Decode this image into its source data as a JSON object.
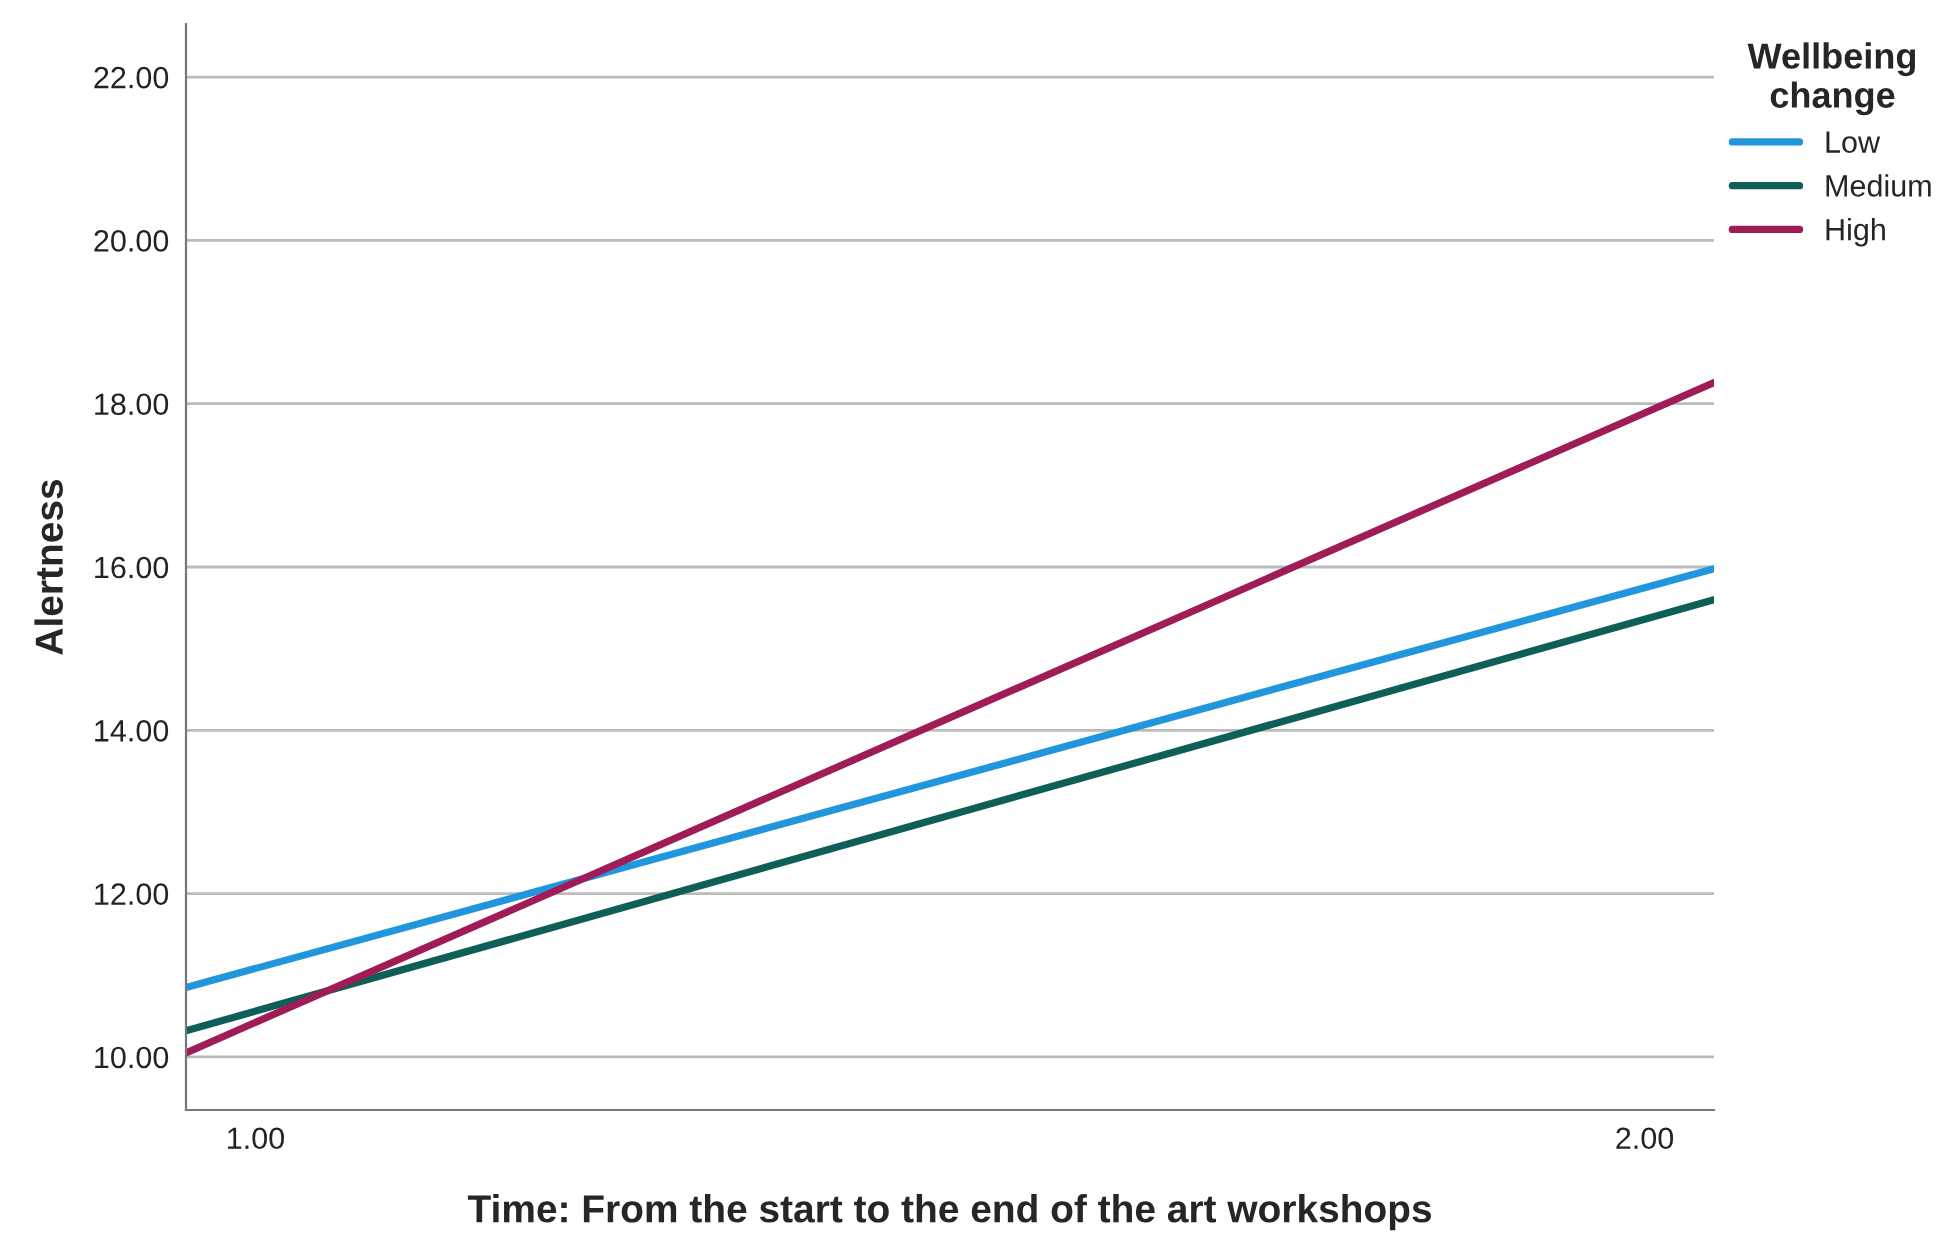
{
  "chart_data": {
    "type": "line",
    "xlabel": "Time: From the start to the end of the art workshops",
    "ylabel": "Alertness",
    "legend_title": "Wellbeing\nchange",
    "x": [
      0.95,
      2.05
    ],
    "series": [
      {
        "name": "Low",
        "color": "#2196dc",
        "values": [
          10.85,
          15.98
        ]
      },
      {
        "name": "Medium",
        "color": "#0d5f58",
        "values": [
          10.32,
          15.6
        ]
      },
      {
        "name": "High",
        "color": "#a01c57",
        "values": [
          10.05,
          18.26
        ]
      }
    ],
    "xlim": [
      0.95,
      2.05
    ],
    "xticks": [
      {
        "value": 1,
        "label": "1.00"
      },
      {
        "value": 2,
        "label": "2.00"
      }
    ],
    "ylim": [
      9.35,
      22.65
    ],
    "yticks": [
      {
        "value": 10,
        "label": "10.00"
      },
      {
        "value": 12,
        "label": "12.00"
      },
      {
        "value": 14,
        "label": "14.00"
      },
      {
        "value": 16,
        "label": "16.00"
      },
      {
        "value": 18,
        "label": "18.00"
      },
      {
        "value": 20,
        "label": "20.00"
      },
      {
        "value": 22,
        "label": "22.00"
      }
    ],
    "grid": "y",
    "legend": "top right",
    "marker": "none",
    "line_style": "solid"
  }
}
